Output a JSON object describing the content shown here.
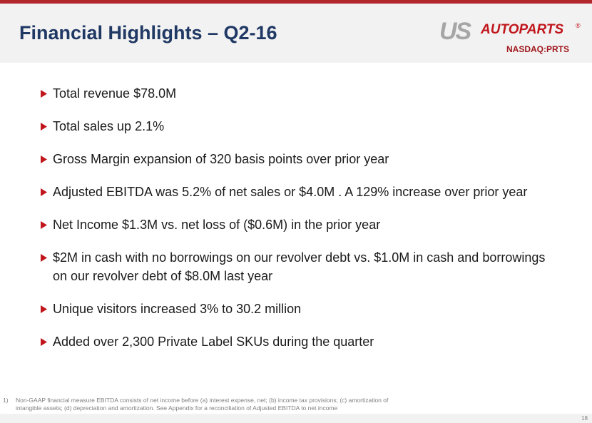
{
  "header": {
    "title": "Financial Highlights – Q2-16"
  },
  "logo": {
    "us": "US",
    "name": "AUTOPARTS",
    "mark": "®",
    "ticker": "NASDAQ:PRTS"
  },
  "bullets": [
    "Total revenue $78.0M",
    "Total sales up 2.1%",
    "Gross Margin expansion of 320 basis points over prior year",
    "Adjusted EBITDA was 5.2% of net sales or $4.0M . A 129% increase over prior year",
    "Net Income $1.3M vs. net loss of ($0.6M) in the prior year",
    "$2M in cash with no borrowings on our revolver debt vs. $1.0M in cash and borrowings on our revolver debt of $8.0M last year",
    "Unique visitors increased 3% to 30.2 million",
    "Added over 2,300 Private Label SKUs during the quarter"
  ],
  "footnote": {
    "number": "1)",
    "text": "Non-GAAP financial measure EBITDA consists of net income before (a) interest expense, net; (b) income tax provisions; (c) amortization of intangible assets; (d) depreciation and amortization.  See Appendix for a reconciliation of Adjusted EBITDA to net income"
  },
  "page_number": "18"
}
